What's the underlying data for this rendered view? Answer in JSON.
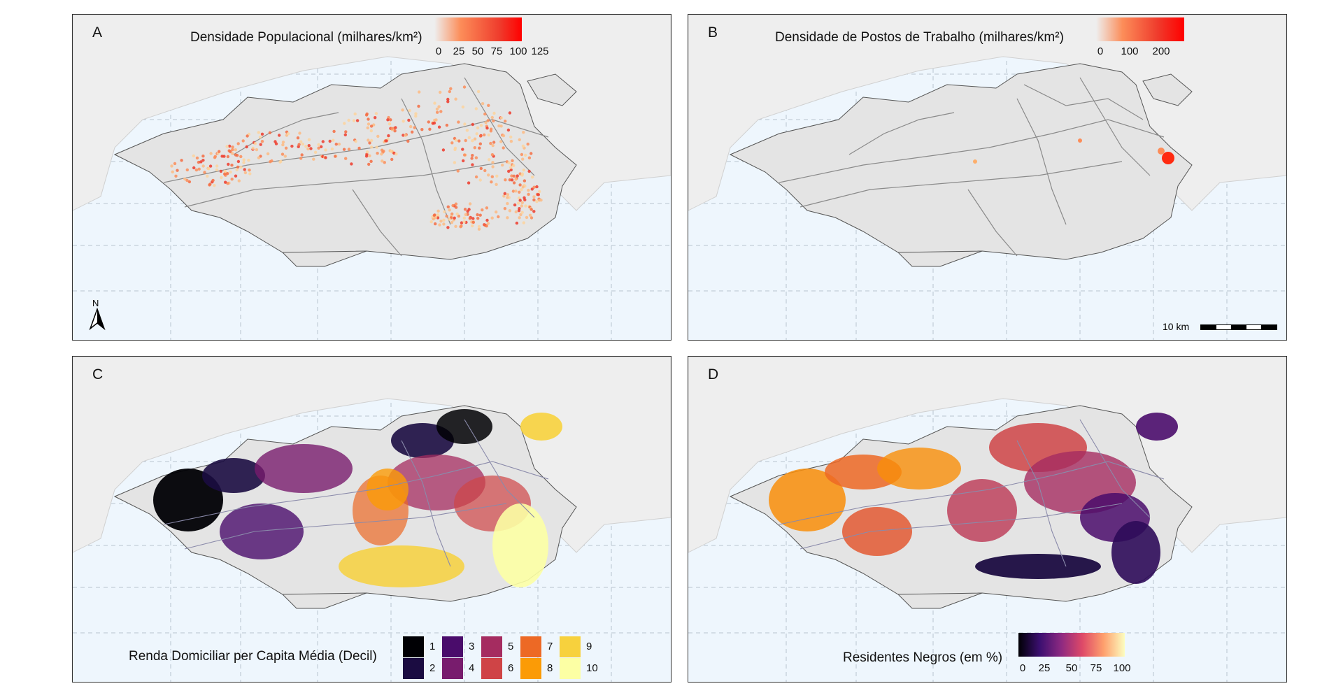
{
  "panels": {
    "a": {
      "label": "A",
      "legend_title": "Densidade Populacional (milhares/km²)",
      "ticks": [
        "0",
        "25",
        "50",
        "75",
        "100",
        "125"
      ]
    },
    "b": {
      "label": "B",
      "legend_title": "Densidade de Postos de Trabalho (milhares/km²)",
      "ticks": [
        "0",
        "100",
        "200"
      ]
    },
    "c": {
      "label": "C",
      "legend_title": "Renda Domiciliar per Capita Média (Decil)",
      "deciles": [
        {
          "label": "1",
          "color": "#000004"
        },
        {
          "label": "2",
          "color": "#1b0c41"
        },
        {
          "label": "3",
          "color": "#4a0c6b"
        },
        {
          "label": "4",
          "color": "#781c6d"
        },
        {
          "label": "5",
          "color": "#a52c60"
        },
        {
          "label": "6",
          "color": "#cf4446"
        },
        {
          "label": "7",
          "color": "#ed6925"
        },
        {
          "label": "8",
          "color": "#fb9b06"
        },
        {
          "label": "9",
          "color": "#f7d13d"
        },
        {
          "label": "10",
          "color": "#fcffa4"
        }
      ]
    },
    "d": {
      "label": "D",
      "legend_title": "Residentes Negros (em %)",
      "ticks": [
        "0",
        "25",
        "50",
        "75",
        "100"
      ]
    }
  },
  "north_arrow": "N",
  "scale_bar": {
    "label": "10 km"
  },
  "colors": {
    "ocean": "#eef6fd",
    "land": "#e4e4e4",
    "density_low": "#fdd49e",
    "density_high": "#ff0000"
  }
}
